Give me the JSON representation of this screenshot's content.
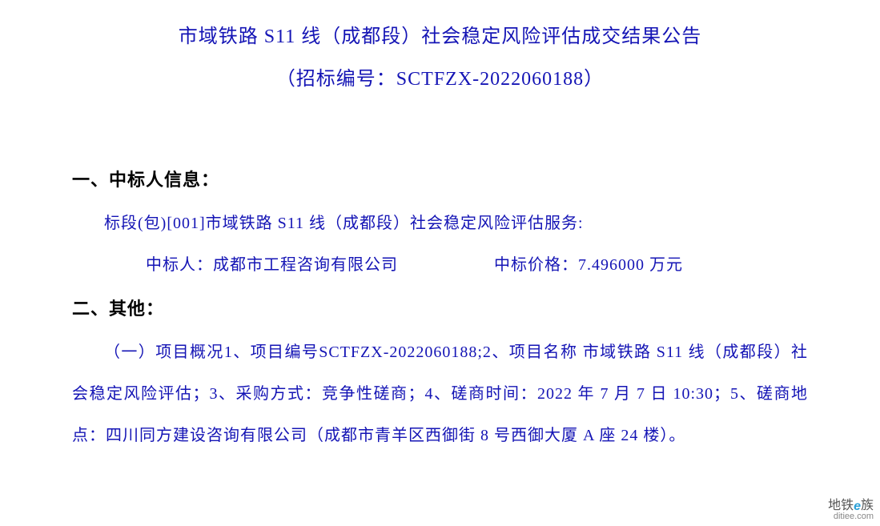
{
  "colors": {
    "text": "#1414b5",
    "heading": "#000000",
    "background": "#ffffff",
    "watermark_main": "#555555",
    "watermark_accent": "#2aa0d8",
    "watermark_sub": "#888888"
  },
  "title": {
    "line1": "市域铁路 S11 线（成都段）社会稳定风险评估成交结果公告",
    "line2": "（招标编号：SCTFZX-2022060188）"
  },
  "section1": {
    "heading": "一、中标人信息：",
    "package_line": "标段(包)[001]市域铁路 S11 线（成都段）社会稳定风险评估服务:",
    "bidder_label": "中标人：",
    "bidder_value": "成都市工程咨询有限公司",
    "price_label": "中标价格：",
    "price_value": "7.496000 万元"
  },
  "section2": {
    "heading": "二、其他：",
    "body": "（一）项目概况1、项目编号SCTFZX-2022060188;2、项目名称 市域铁路 S11 线（成都段）社会稳定风险评估；3、采购方式：竞争性磋商；4、磋商时间：2022 年 7 月 7 日 10:30；5、磋商地点：四川同方建设咨询有限公司（成都市青羊区西御街 8 号西御大厦 A 座 24 楼）。"
  },
  "watermark": {
    "main_pre": "地铁",
    "main_e": "e",
    "main_post": "族",
    "sub": "ditiee.com"
  }
}
